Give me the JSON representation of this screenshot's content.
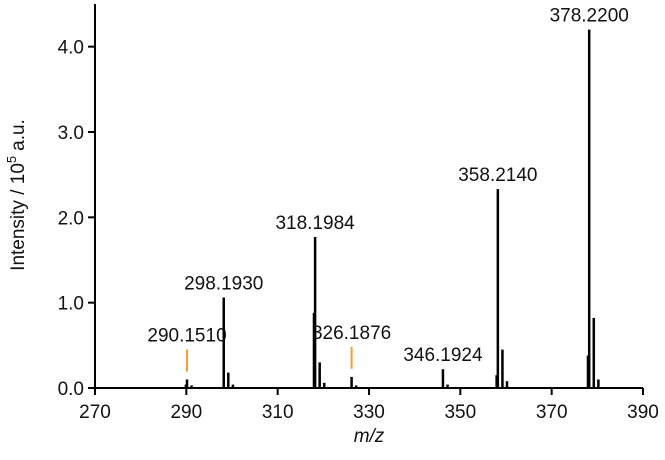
{
  "chart_data": {
    "type": "stem",
    "x_label": "m/z",
    "y_label": {
      "text": "Intensity / 10",
      "superscript": "5",
      "suffix": "a.u."
    },
    "color": "#000000",
    "highlight_color": "#f0a030",
    "xlim": [
      270,
      390
    ],
    "xticks": [
      270,
      290,
      310,
      330,
      350,
      370,
      390
    ],
    "ylim": [
      0,
      4.5
    ],
    "yticks": [
      {
        "value": 0,
        "label": "0.0"
      },
      {
        "value": 1,
        "label": "1.0"
      },
      {
        "value": 2,
        "label": "2.0"
      },
      {
        "value": 3,
        "label": "3.0"
      },
      {
        "value": 4,
        "label": "4.0"
      }
    ],
    "x": [
      289.9,
      290.151,
      291.15,
      298.193,
      299.19,
      300.2,
      317.95,
      318.198,
      319.2,
      320.2,
      326.188,
      327.19,
      346.192,
      347.2,
      357.95,
      358.214,
      359.22,
      360.22,
      377.95,
      378.22,
      379.22,
      380.23
    ],
    "values": [
      0.04,
      0.1,
      0.03,
      1.06,
      0.18,
      0.04,
      0.88,
      1.77,
      0.3,
      0.06,
      0.13,
      0.03,
      0.22,
      0.04,
      0.15,
      2.33,
      0.45,
      0.08,
      0.38,
      4.2,
      0.82,
      0.1
    ],
    "peak_labels": [
      null,
      "290.1510",
      null,
      "298.1930",
      null,
      null,
      null,
      "318.1984",
      null,
      null,
      "326.1876",
      null,
      "346.1924",
      null,
      null,
      "358.2140",
      null,
      null,
      null,
      "378.2200",
      null,
      null
    ],
    "highlight": [
      false,
      true,
      false,
      false,
      false,
      false,
      false,
      false,
      false,
      false,
      true,
      false,
      false,
      false,
      false,
      false,
      false,
      false,
      false,
      false,
      false,
      false
    ]
  }
}
